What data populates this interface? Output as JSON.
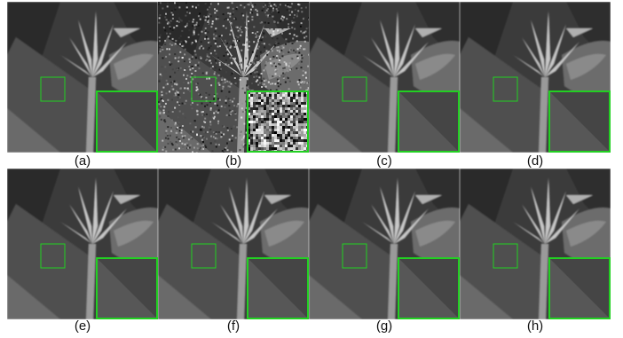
{
  "figure": {
    "panels": [
      {
        "label": "(a)",
        "noise": false
      },
      {
        "label": "(b)",
        "noise": true
      },
      {
        "label": "(c)",
        "noise": false
      },
      {
        "label": "(d)",
        "noise": false
      },
      {
        "label": "(e)",
        "noise": false
      },
      {
        "label": "(f)",
        "noise": false
      },
      {
        "label": "(g)",
        "noise": false
      },
      {
        "label": "(h)",
        "noise": false
      }
    ],
    "colors": {
      "highlight_box": "#22d022"
    }
  }
}
